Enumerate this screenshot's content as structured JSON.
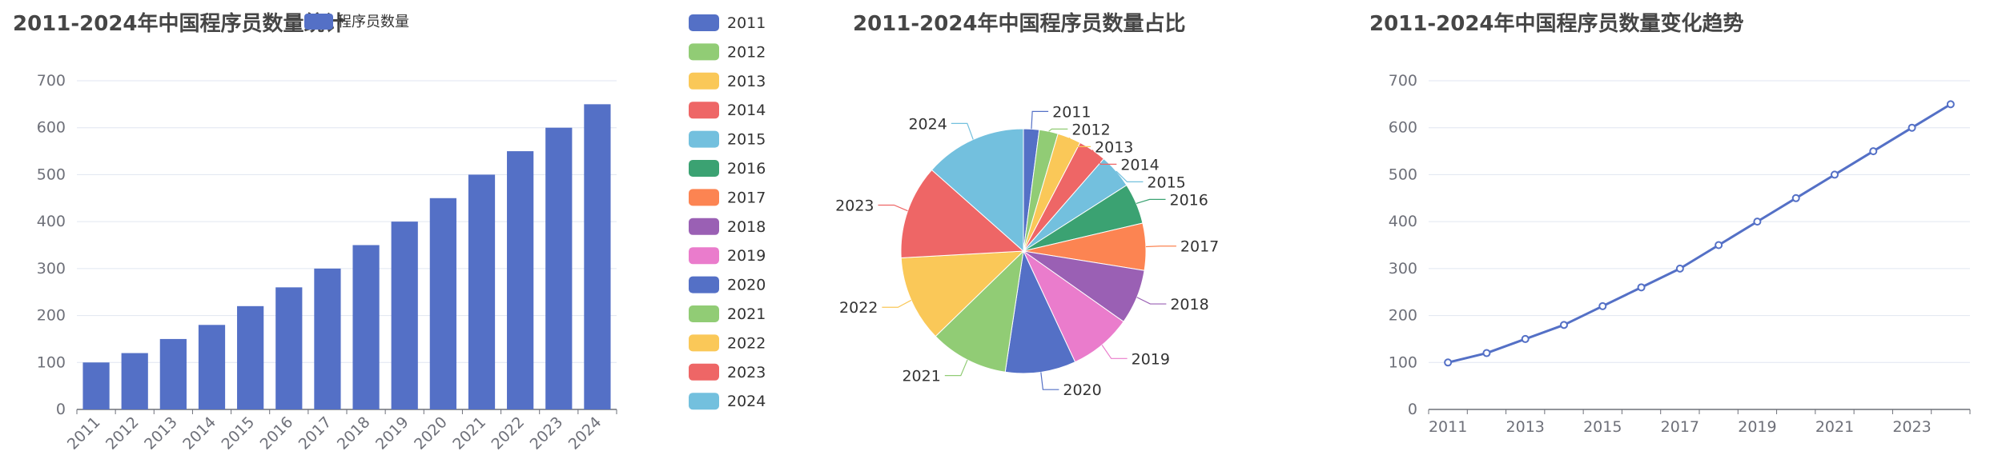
{
  "charts": {
    "bar": {
      "title": "2011-2024年中国程序员数量统计",
      "legend_label": "程序员数量",
      "legend_color": "#5470C6"
    },
    "pie": {
      "title": "2011-2024年中国程序员数量占比"
    },
    "line": {
      "title": "2011-2024年中国程序员数量变化趋势"
    }
  },
  "chart_data": [
    {
      "type": "bar",
      "title": "2011-2024年中国程序员数量统计",
      "categories": [
        "2011",
        "2012",
        "2013",
        "2014",
        "2015",
        "2016",
        "2017",
        "2018",
        "2019",
        "2020",
        "2021",
        "2022",
        "2023",
        "2024"
      ],
      "series": [
        {
          "name": "程序员数量",
          "values": [
            100,
            120,
            150,
            180,
            220,
            260,
            300,
            350,
            400,
            450,
            500,
            550,
            600,
            650
          ],
          "color": "#5470C6"
        }
      ],
      "ylim": [
        0,
        700
      ],
      "yticks": [
        0,
        100,
        200,
        300,
        400,
        500,
        600,
        700
      ],
      "grid": true
    },
    {
      "type": "pie",
      "title": "2011-2024年中国程序员数量占比",
      "categories": [
        "2011",
        "2012",
        "2013",
        "2014",
        "2015",
        "2016",
        "2017",
        "2018",
        "2019",
        "2020",
        "2021",
        "2022",
        "2023",
        "2024"
      ],
      "values": [
        100,
        120,
        150,
        180,
        220,
        260,
        300,
        350,
        400,
        450,
        500,
        550,
        600,
        650
      ],
      "colors": [
        "#5470C6",
        "#91CC75",
        "#FAC858",
        "#EE6666",
        "#73C0DE",
        "#3BA272",
        "#FC8452",
        "#9A60B4",
        "#EA7CCC",
        "#5470C6",
        "#91CC75",
        "#FAC858",
        "#EE6666",
        "#73C0DE"
      ],
      "legend_placement": "left"
    },
    {
      "type": "line",
      "title": "2011-2024年中国程序员数量变化趋势",
      "x": [
        "2011",
        "2012",
        "2013",
        "2014",
        "2015",
        "2016",
        "2017",
        "2018",
        "2019",
        "2020",
        "2021",
        "2022",
        "2023",
        "2024"
      ],
      "x_tick_labels": [
        "2011",
        "2013",
        "2015",
        "2017",
        "2019",
        "2021",
        "2023"
      ],
      "values": [
        100,
        120,
        150,
        180,
        220,
        260,
        300,
        350,
        400,
        450,
        500,
        550,
        600,
        650
      ],
      "color": "#5470C6",
      "ylim": [
        0,
        700
      ],
      "yticks": [
        0,
        100,
        200,
        300,
        400,
        500,
        600,
        700
      ],
      "grid": true
    }
  ]
}
